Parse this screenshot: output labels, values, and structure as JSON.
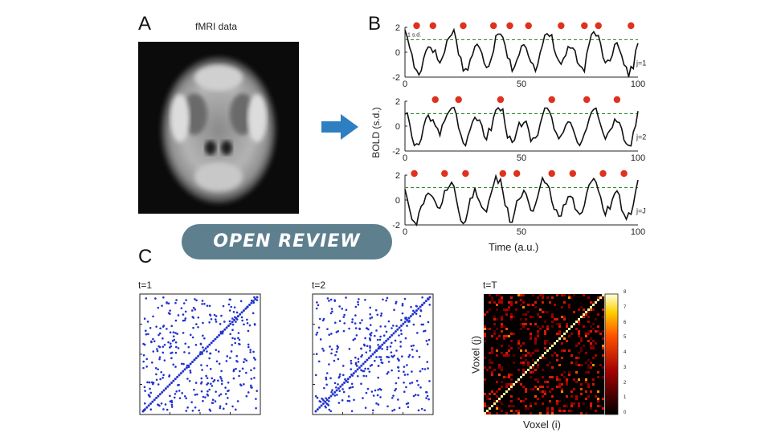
{
  "panel_a": {
    "letter": "A",
    "title": "fMRI data"
  },
  "panel_b": {
    "letter": "B",
    "threshold_label": "1 s.d.",
    "ylabel": "BOLD  (s.d.)",
    "xlabel": "Time  (a.u.)",
    "x_ticks": [
      "0",
      "50",
      "100"
    ],
    "y_ticks": [
      "2",
      "0",
      "-2"
    ],
    "rows": [
      {
        "label": "j=1",
        "event_count": 10
      },
      {
        "label": "j=2",
        "event_count": 6
      },
      {
        "label": "j=J",
        "event_count": 9
      }
    ]
  },
  "panel_c": {
    "letter": "C",
    "plots": [
      {
        "title": "t=1"
      },
      {
        "title": "t=2"
      },
      {
        "title": "t=T",
        "xlabel": "Voxel (i)",
        "ylabel": "Voxel (j)",
        "colorbar_ticks": [
          "8",
          "7",
          "6",
          "5",
          "4",
          "3",
          "2",
          "1",
          "0"
        ]
      }
    ]
  },
  "badge": {
    "text": "OPEN REVIEW"
  },
  "colors": {
    "signal": "#111111",
    "event_dot": "#e0301e",
    "threshold": "#2e8b2e",
    "matrix_dot": "#2233cc",
    "arrow": "#2d7fc1",
    "badge_bg": "#5d7f8e"
  }
}
